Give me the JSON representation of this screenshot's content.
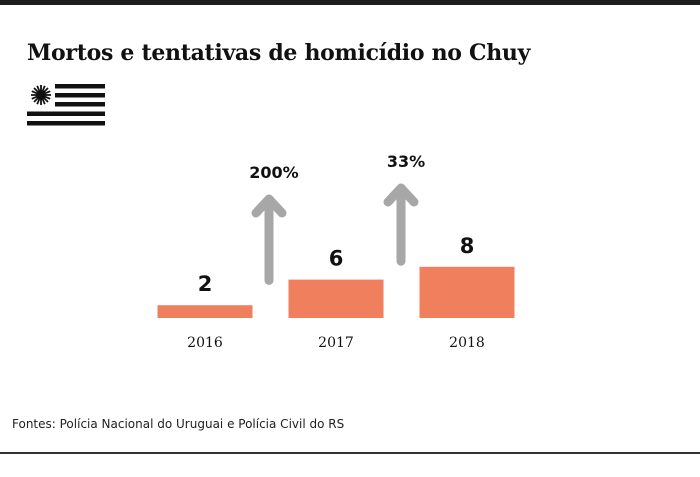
{
  "title": "Mortos e tentativas de homicídio no Chuy",
  "flag_icon": "uruguay-flag-icon",
  "chart_data": {
    "type": "bar",
    "categories": [
      "2016",
      "2017",
      "2018"
    ],
    "values": [
      2,
      6,
      8
    ],
    "value_labels": [
      "2",
      "6",
      "8"
    ],
    "changes": [
      {
        "from": "2016",
        "to": "2017",
        "label": "200%"
      },
      {
        "from": "2017",
        "to": "2018",
        "label": "33%"
      }
    ],
    "title": "",
    "xlabel": "",
    "ylabel": "",
    "ylim": [
      0,
      8
    ],
    "grid": false,
    "colors": {
      "bar": "#f07f5e",
      "arrow": "#a7a7a7",
      "text": "#111111"
    }
  },
  "source": "Fontes: Polícia Nacional do Uruguai e Polícia Civil do RS"
}
